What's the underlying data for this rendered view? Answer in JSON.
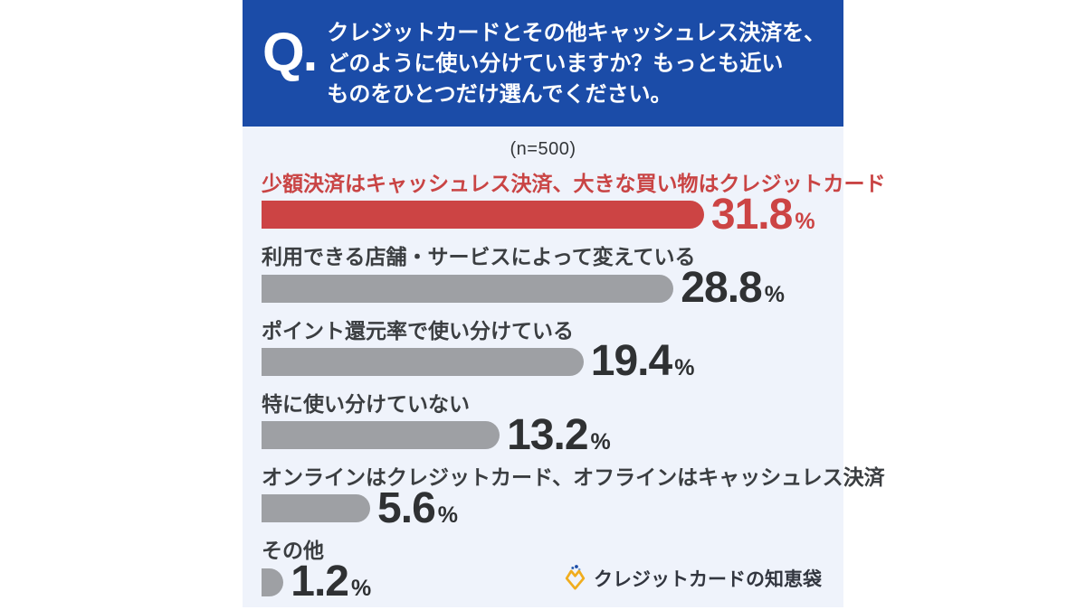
{
  "header": {
    "q_mark": "Q.",
    "question_lines": [
      "クレジットカードとその他キャッシュレス決済を、",
      "どのように使い分けていますか？もっとも近い",
      "ものをひとつだけ選んでください。"
    ],
    "background_color": "#1b4ca8",
    "text_color": "#ffffff"
  },
  "chart_data": {
    "type": "bar",
    "orientation": "horizontal",
    "sample_size_label": "(n=500)",
    "categories": [
      "少額決済はキャッシュレス決済、大きな買い物はクレジットカード",
      "利用できる店舗・サービスによって変えている",
      "ポイント還元率で使い分けている",
      "特に使い分けていない",
      "オンラインはクレジットカード、オフラインはキャッシュレス決済",
      "その他"
    ],
    "values": [
      31.8,
      28.8,
      19.4,
      13.2,
      5.6,
      1.2
    ],
    "unit": "%",
    "highlight_index": 0,
    "highlight_color": "#cc4444",
    "default_bar_color": "#9ea0a4",
    "value_text_color": "#2f3133",
    "label_text_color": "#3b3e41",
    "panel_background": "#eff3fb",
    "axis": "none",
    "grid": false,
    "legend": "none",
    "bar_width_pct": [
      78.6,
      73.2,
      57.2,
      42.3,
      19.3,
      3.9
    ]
  },
  "footer": {
    "logo_text": "クレジットカードの知恵袋",
    "logo_icon": "wisdom-bag-icon",
    "logo_gold": "#f0ad1e",
    "logo_text_color": "#32363f"
  }
}
